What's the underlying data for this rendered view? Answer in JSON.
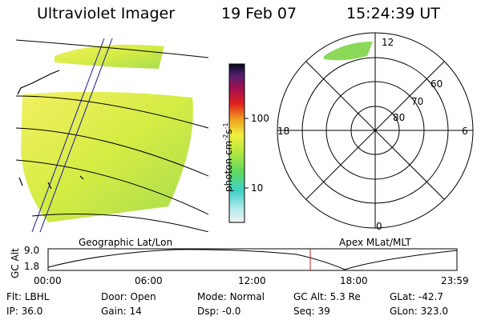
{
  "header": {
    "instrument": "Ultraviolet Imager",
    "date": "19 Feb 07",
    "time": "15:24:39 UT"
  },
  "colorbar": {
    "unit_label_parts": [
      "photon cm",
      "-2",
      "s",
      "-1"
    ],
    "tick_labels": [
      "100",
      "10"
    ]
  },
  "polar_plot": {
    "mlt_labels": [
      "12",
      "18",
      "6",
      "0"
    ],
    "mlat_labels": [
      "60",
      "70",
      "80"
    ]
  },
  "panel_labels": {
    "left": "Geographic Lat/Lon",
    "right": "Apex MLat/MLT"
  },
  "altitude_plot": {
    "ylabel": "GC Alt",
    "yticks": [
      "9.0",
      "1.8"
    ],
    "xticks": [
      "00:00",
      "06:00",
      "12:00",
      "18:00",
      "23:59"
    ]
  },
  "status": {
    "row1": [
      {
        "label": "Flt:",
        "value": "LBHL"
      },
      {
        "label": "Door:",
        "value": "Open"
      },
      {
        "label": "Mode:",
        "value": "Normal"
      },
      {
        "label": "GC Alt:",
        "value": "5.3 Re"
      },
      {
        "label": "GLat:",
        "value": "-42.7"
      }
    ],
    "row2": [
      {
        "label": "IP:",
        "value": "36.0"
      },
      {
        "label": "Gain:",
        "value": "14"
      },
      {
        "label": "Dsp:",
        "value": "-0.0"
      },
      {
        "label": "Seq:",
        "value": "39"
      },
      {
        "label": "GLon:",
        "value": "323.0"
      }
    ]
  },
  "colors": {
    "image_main": "#e6f03c",
    "image_alt": "#b4e04a",
    "current_time_marker": "#d02020"
  }
}
